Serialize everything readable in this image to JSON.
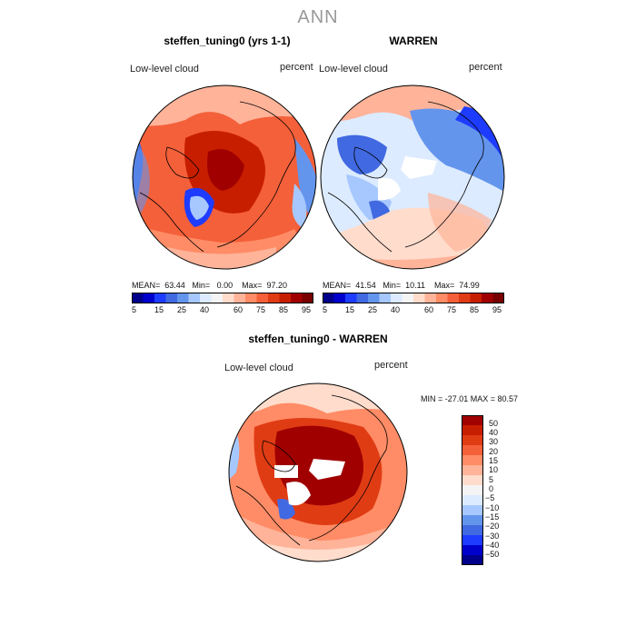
{
  "title": "ANN",
  "panels": [
    {
      "id": "p1",
      "title": "steffen_tuning0 (yrs 1-1)",
      "var_label": "Low-level cloud",
      "units": "percent",
      "mean_label": "MEAN=",
      "mean": "63.44",
      "min_label": "Min=",
      "min": "0.00",
      "max_label": "Max=",
      "max": "97.20"
    },
    {
      "id": "p2",
      "title": "WARREN",
      "var_label": "Low-level cloud",
      "units": "percent",
      "mean_label": "MEAN=",
      "mean": "41.54",
      "min_label": "Min=",
      "min": "10.11",
      "max_label": "Max=",
      "max": "74.99"
    },
    {
      "id": "p3",
      "title": "steffen_tuning0 - WARREN",
      "var_label": "Low-level cloud",
      "units": "percent",
      "minmax": "MIN = -27.01 MAX =  80.57"
    }
  ],
  "colorbar_top": {
    "ticks": [
      "5",
      "15",
      "25",
      "40",
      "60",
      "75",
      "85",
      "95"
    ],
    "colors": [
      "#00008b",
      "#0000cd",
      "#1e3cff",
      "#4169e1",
      "#6495ed",
      "#a6c8ff",
      "#dcebff",
      "#f4f4f4",
      "#ffdccc",
      "#ffb399",
      "#ff8c66",
      "#f4603a",
      "#e03c14",
      "#c81e00",
      "#a00000",
      "#780000"
    ]
  },
  "colorbar_diff": {
    "labels": [
      "50",
      "40",
      "30",
      "20",
      "15",
      "10",
      "5",
      "0",
      "−5",
      "−10",
      "−15",
      "−20",
      "−30",
      "−40",
      "−50"
    ],
    "colors": [
      "#a00000",
      "#c81e00",
      "#e03c14",
      "#f4603a",
      "#ff8c66",
      "#ffb399",
      "#ffdccc",
      "#f4f4f4",
      "#dcebff",
      "#a6c8ff",
      "#6495ed",
      "#4169e1",
      "#1e3cff",
      "#0000cd",
      "#00008b"
    ]
  },
  "chart_data": [
    {
      "type": "heatmap",
      "title": "steffen_tuning0 (yrs 1-1)",
      "variable": "Low-level cloud",
      "units": "percent",
      "projection": "north polar stereographic",
      "mean": 63.44,
      "min": 0.0,
      "max": 97.2
    },
    {
      "type": "heatmap",
      "title": "WARREN",
      "variable": "Low-level cloud",
      "units": "percent",
      "projection": "north polar stereographic",
      "mean": 41.54,
      "min": 10.11,
      "max": 74.99
    },
    {
      "type": "heatmap",
      "title": "steffen_tuning0 - WARREN",
      "variable": "Low-level cloud",
      "units": "percent",
      "projection": "north polar stereographic",
      "min": -27.01,
      "max": 80.57
    }
  ]
}
